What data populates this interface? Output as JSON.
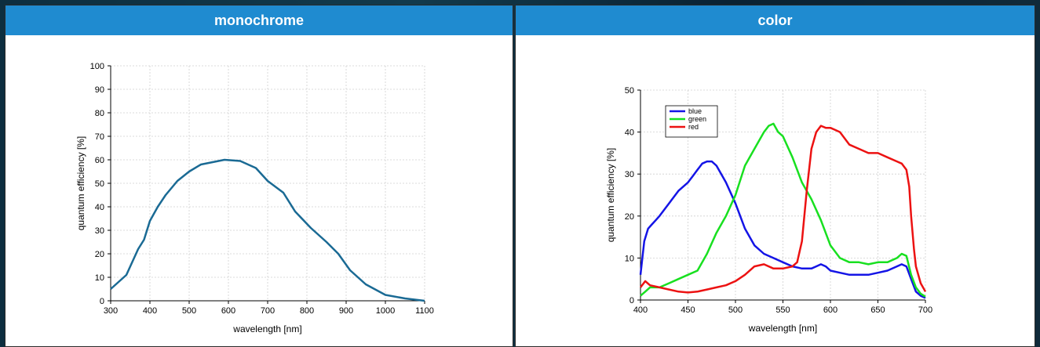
{
  "panels": {
    "mono": {
      "title": "monochrome"
    },
    "color": {
      "title": "color"
    }
  },
  "chart_data": [
    {
      "type": "line",
      "title": "",
      "xlabel": "wavelength [nm]",
      "ylabel": "quantum efficiency [%]",
      "xlim": [
        300,
        1100
      ],
      "ylim": [
        0,
        100
      ],
      "xticks": [
        300,
        400,
        500,
        600,
        700,
        800,
        900,
        1000,
        1100
      ],
      "yticks": [
        0,
        10,
        20,
        30,
        40,
        50,
        60,
        70,
        80,
        90,
        100
      ],
      "grid": true,
      "series": [
        {
          "color": "#1a6a94",
          "x": [
            300,
            340,
            370,
            385,
            400,
            420,
            440,
            470,
            500,
            530,
            560,
            590,
            630,
            670,
            700,
            740,
            770,
            810,
            850,
            880,
            910,
            950,
            1000,
            1050,
            1100
          ],
          "y": [
            5,
            11,
            22,
            26,
            34,
            40,
            45,
            51,
            55,
            58,
            59,
            60,
            59.5,
            56.5,
            51,
            46,
            38,
            31,
            25,
            20,
            13,
            7,
            2.5,
            1,
            0
          ]
        }
      ]
    },
    {
      "type": "line",
      "title": "",
      "xlabel": "wavelength [nm]",
      "ylabel": "quantum efficiency [%]",
      "xlim": [
        400,
        700
      ],
      "ylim": [
        0,
        50
      ],
      "xticks": [
        400,
        450,
        500,
        550,
        600,
        650,
        700
      ],
      "yticks": [
        0,
        10,
        20,
        30,
        40,
        50
      ],
      "grid": true,
      "legend": "top-left",
      "series": [
        {
          "name": "blue",
          "color": "#1414e6",
          "x": [
            400,
            402,
            404,
            408,
            412,
            416,
            420,
            430,
            440,
            445,
            450,
            455,
            460,
            465,
            470,
            475,
            480,
            485,
            490,
            500,
            510,
            520,
            530,
            540,
            550,
            560,
            570,
            575,
            580,
            585,
            590,
            595,
            600,
            610,
            620,
            630,
            640,
            650,
            660,
            670,
            675,
            680,
            685,
            690,
            695,
            700
          ],
          "y": [
            6,
            10,
            14,
            17,
            18,
            19,
            20,
            23,
            26,
            27,
            28,
            29.5,
            31,
            32.5,
            33,
            33,
            32,
            30,
            28,
            23,
            17,
            13,
            11,
            10,
            9,
            8,
            7.5,
            7.5,
            7.5,
            8,
            8.5,
            8,
            7,
            6.5,
            6,
            6,
            6,
            6.5,
            7,
            8,
            8.5,
            8,
            5,
            2,
            1,
            0.5
          ]
        },
        {
          "name": "green",
          "color": "#18e020",
          "x": [
            400,
            405,
            410,
            420,
            430,
            440,
            450,
            460,
            470,
            480,
            490,
            500,
            510,
            520,
            530,
            535,
            540,
            545,
            550,
            560,
            570,
            580,
            590,
            600,
            610,
            620,
            630,
            640,
            650,
            660,
            670,
            675,
            680,
            685,
            690,
            695,
            700
          ],
          "y": [
            1,
            2,
            3,
            3,
            4,
            5,
            6,
            7,
            11,
            16,
            20,
            25,
            32,
            36,
            40,
            41.5,
            42,
            40,
            39,
            34,
            28,
            24,
            19,
            13,
            10,
            9,
            9,
            8.5,
            9,
            9,
            10,
            11,
            10.5,
            6,
            3,
            1.5,
            0.8
          ]
        },
        {
          "name": "red",
          "color": "#ec1212",
          "x": [
            400,
            405,
            410,
            420,
            430,
            440,
            450,
            460,
            470,
            480,
            490,
            500,
            510,
            520,
            530,
            540,
            550,
            560,
            565,
            570,
            575,
            580,
            585,
            590,
            595,
            600,
            605,
            610,
            620,
            630,
            640,
            650,
            660,
            670,
            675,
            680,
            683,
            685,
            688,
            690,
            695,
            700
          ],
          "y": [
            3,
            4.5,
            3.5,
            3,
            2.5,
            2,
            1.8,
            2,
            2.5,
            3,
            3.5,
            4.5,
            6,
            8,
            8.5,
            7.5,
            7.5,
            8,
            9,
            14,
            26,
            36,
            40,
            41.5,
            41,
            41,
            40.5,
            40,
            37,
            36,
            35,
            35,
            34,
            33,
            32.5,
            31,
            27,
            20,
            12,
            8,
            4,
            2
          ]
        }
      ]
    }
  ]
}
